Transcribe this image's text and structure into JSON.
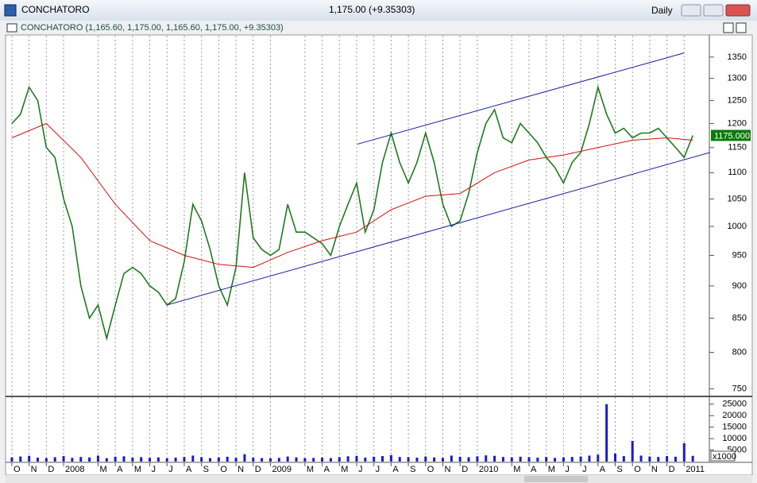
{
  "window": {
    "title": "CONCHATORO",
    "quote": "1,175.00 (+9.35303)",
    "period": "Daily"
  },
  "chart_data": [
    {
      "type": "line",
      "subtitle": "CONCHATORO (1,165.60, 1,175.00, 1,165.60, 1,175.00, +9.35303)",
      "last_price_label": "1175.000",
      "log_scale": true,
      "xlim": [
        -0.32,
        40.46
      ],
      "ylim": [
        742,
        1402
      ],
      "yticks": [
        750,
        800,
        850,
        900,
        950,
        1000,
        1050,
        1100,
        1150,
        1200,
        1250,
        1300,
        1350
      ],
      "series": [
        {
          "color": "#1f7a1f",
          "x": [
            0,
            0.5,
            1,
            1.5,
            2,
            2.5,
            3,
            3.5,
            4,
            4.5,
            5,
            5.5,
            6,
            6.5,
            7,
            7.5,
            8,
            8.5,
            9,
            9.5,
            10,
            10.5,
            11,
            11.5,
            12,
            12.5,
            13,
            13.5,
            14,
            14.5,
            15,
            15.5,
            16,
            16.5,
            17,
            17.5,
            18,
            18.5,
            19,
            19.5,
            20,
            20.5,
            21,
            21.5,
            22,
            22.5,
            23,
            23.5,
            24,
            24.5,
            25,
            25.5,
            26,
            26.5,
            27,
            27.5,
            28,
            28.5,
            29,
            29.5,
            30,
            30.5,
            31,
            31.5,
            32,
            32.5,
            33,
            33.5,
            34,
            34.5,
            35,
            35.5,
            36,
            36.5,
            37,
            37.5,
            38,
            38.5,
            39,
            39.5
          ],
          "values": [
            1200,
            1220,
            1280,
            1250,
            1150,
            1130,
            1050,
            1000,
            900,
            850,
            870,
            820,
            870,
            920,
            930,
            920,
            900,
            890,
            870,
            880,
            940,
            1040,
            1010,
            960,
            900,
            870,
            930,
            1100,
            980,
            960,
            950,
            960,
            1040,
            990,
            990,
            980,
            970,
            950,
            1000,
            1040,
            1080,
            990,
            1030,
            1120,
            1180,
            1120,
            1080,
            1120,
            1180,
            1120,
            1040,
            1000,
            1010,
            1060,
            1140,
            1200,
            1230,
            1170,
            1160,
            1200,
            1180,
            1160,
            1130,
            1110,
            1080,
            1120,
            1140,
            1200,
            1280,
            1220,
            1180,
            1190,
            1170,
            1180,
            1180,
            1190,
            1170,
            1150,
            1130,
            1175
          ]
        },
        {
          "color": "#d01010",
          "x": [
            0,
            2,
            4,
            6,
            8,
            10,
            12,
            14,
            16,
            18,
            20,
            22,
            24,
            26,
            28,
            30,
            32,
            34,
            36,
            38,
            39.5
          ],
          "values": [
            1170,
            1200,
            1130,
            1040,
            975,
            950,
            935,
            930,
            955,
            975,
            990,
            1030,
            1055,
            1060,
            1100,
            1125,
            1135,
            1150,
            1165,
            1170,
            1165
          ]
        }
      ],
      "trendlines": [
        {
          "color": "#1a1aa0",
          "x": [
            9.0,
            40.5
          ],
          "values": [
            870,
            1140
          ]
        },
        {
          "color": "#1a1aa0",
          "x": [
            20.05,
            39.0
          ],
          "values": [
            1157,
            1360
          ]
        }
      ]
    },
    {
      "type": "bar",
      "multiplier_label": "x1000",
      "color": "#1a1ad0",
      "xlim": [
        -0.32,
        40.46
      ],
      "ylim": [
        0,
        27000
      ],
      "yticks": [
        5000,
        10000,
        15000,
        20000,
        25000
      ],
      "xticks": [
        {
          "value": 0,
          "label": "O"
        },
        {
          "value": 1,
          "label": "N"
        },
        {
          "value": 2,
          "label": "D"
        },
        {
          "value": 3,
          "label": "2008"
        },
        {
          "value": 5,
          "label": "M"
        },
        {
          "value": 6,
          "label": "A"
        },
        {
          "value": 7,
          "label": "M"
        },
        {
          "value": 8,
          "label": "J"
        },
        {
          "value": 9,
          "label": "J"
        },
        {
          "value": 10,
          "label": "A"
        },
        {
          "value": 11,
          "label": "S"
        },
        {
          "value": 12,
          "label": "O"
        },
        {
          "value": 13,
          "label": "N"
        },
        {
          "value": 14,
          "label": "D"
        },
        {
          "value": 15,
          "label": "2009"
        },
        {
          "value": 17,
          "label": "M"
        },
        {
          "value": 18,
          "label": "A"
        },
        {
          "value": 19,
          "label": "M"
        },
        {
          "value": 20,
          "label": "J"
        },
        {
          "value": 21,
          "label": "J"
        },
        {
          "value": 22,
          "label": "A"
        },
        {
          "value": 23,
          "label": "S"
        },
        {
          "value": 24,
          "label": "O"
        },
        {
          "value": 25,
          "label": "N"
        },
        {
          "value": 26,
          "label": "D"
        },
        {
          "value": 27,
          "label": "2010"
        },
        {
          "value": 29,
          "label": "M"
        },
        {
          "value": 30,
          "label": "A"
        },
        {
          "value": 31,
          "label": "M"
        },
        {
          "value": 32,
          "label": "J"
        },
        {
          "value": 33,
          "label": "J"
        },
        {
          "value": 34,
          "label": "A"
        },
        {
          "value": 35,
          "label": "S"
        },
        {
          "value": 36,
          "label": "O"
        },
        {
          "value": 37,
          "label": "N"
        },
        {
          "value": 38,
          "label": "D"
        },
        {
          "value": 39,
          "label": "2011"
        }
      ],
      "x": [
        0,
        0.5,
        1,
        1.5,
        2,
        2.5,
        3,
        3.5,
        4,
        4.5,
        5,
        5.5,
        6,
        6.5,
        7,
        7.5,
        8,
        8.5,
        9,
        9.5,
        10,
        10.5,
        11,
        11.5,
        12,
        12.5,
        13,
        13.5,
        14,
        14.5,
        15,
        15.5,
        16,
        16.5,
        17,
        17.5,
        18,
        18.5,
        19,
        19.5,
        20,
        20.5,
        21,
        21.5,
        22,
        22.5,
        23,
        23.5,
        24,
        24.5,
        25,
        25.5,
        26,
        26.5,
        27,
        27.5,
        28,
        28.5,
        29,
        29.5,
        30,
        30.5,
        31,
        31.5,
        32,
        32.5,
        33,
        33.5,
        34,
        34.5,
        35,
        35.5,
        36,
        36.5,
        37,
        37.5,
        38,
        38.5,
        39,
        39.5
      ],
      "values": [
        1800,
        2200,
        2500,
        1700,
        1500,
        1900,
        2400,
        1600,
        2000,
        1800,
        2600,
        1500,
        2100,
        2300,
        1700,
        1900,
        1600,
        1800,
        1400,
        1700,
        2000,
        2600,
        1900,
        1500,
        1800,
        2100,
        1600,
        3200,
        1700,
        1500,
        1400,
        1600,
        2200,
        1800,
        1500,
        1600,
        1700,
        1500,
        1900,
        2300,
        2500,
        1700,
        2100,
        2400,
        2800,
        2000,
        1900,
        1700,
        2200,
        1800,
        1600,
        2600,
        2100,
        1900,
        2300,
        2700,
        2500,
        2000,
        1800,
        2100,
        1900,
        1700,
        2000,
        1600,
        1800,
        2000,
        2200,
        2600,
        3000,
        25000,
        3500,
        2400,
        9000,
        2600,
        2200,
        2000,
        2400,
        2100,
        8000,
        2500
      ]
    }
  ]
}
